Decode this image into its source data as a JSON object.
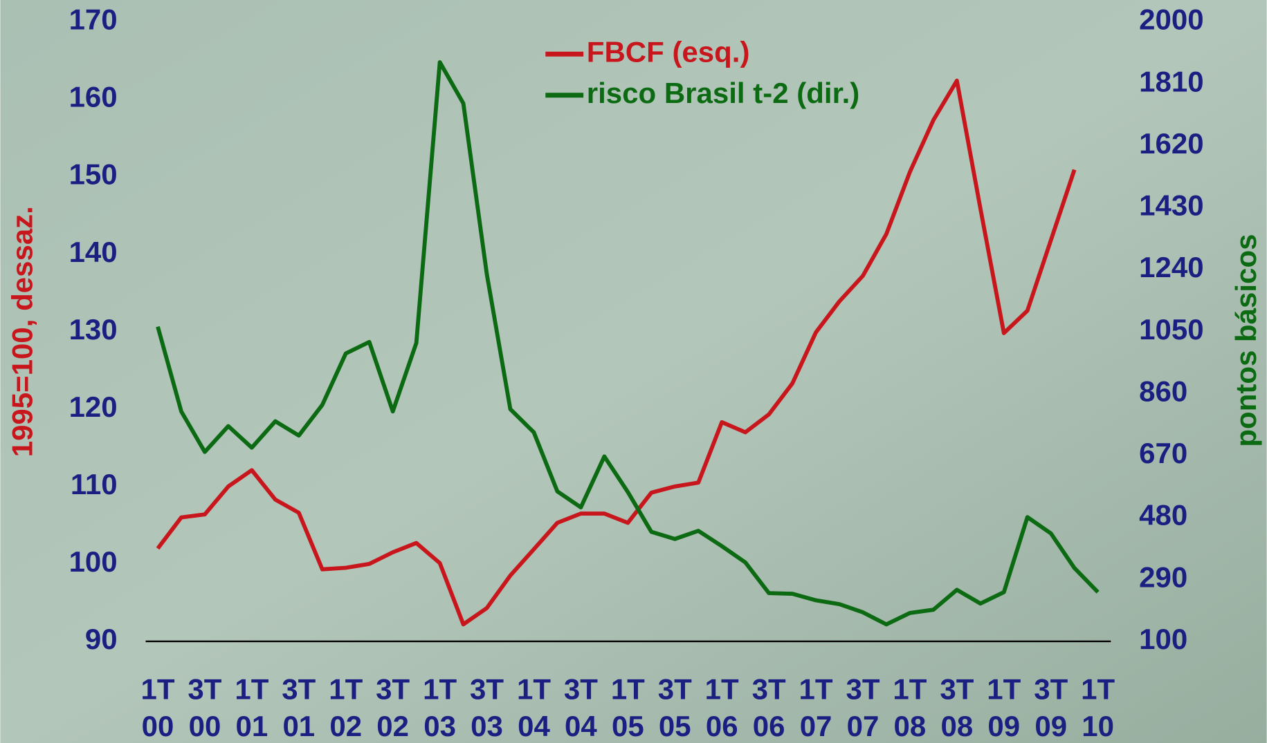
{
  "chart_data": {
    "type": "line",
    "legend": "top-center",
    "ylabel": "1995=100, dessaz.",
    "y2label": "pontos básicos",
    "categories": [
      "1T 00",
      null,
      "3T 00",
      null,
      "1T 01",
      null,
      "3T 01",
      null,
      "1T 02",
      null,
      "3T 02",
      null,
      "1T 03",
      null,
      "3T 03",
      null,
      "1T 04",
      null,
      "3T 04",
      null,
      "1T 05",
      null,
      "3T 05",
      null,
      "1T 06",
      null,
      "3T 06",
      null,
      "1T 07",
      null,
      "3T 07",
      null,
      "1T 08",
      null,
      "3T 08",
      null,
      "1T 09",
      null,
      "3T 09",
      null,
      "1T 10"
    ],
    "ylim": [
      90,
      170
    ],
    "yticks": [
      90,
      100,
      110,
      120,
      130,
      140,
      150,
      160,
      170
    ],
    "y2lim": [
      100,
      2000
    ],
    "y2ticks": [
      100,
      290,
      480,
      670,
      860,
      1050,
      1240,
      1430,
      1620,
      1810,
      2000
    ],
    "series": [
      {
        "name": "FBCF (esq.)",
        "color": "#c8161d",
        "values": [
          102.0,
          106.0,
          106.4,
          110.0,
          112.1,
          108.3,
          106.6,
          99.3,
          99.5,
          100.0,
          101.5,
          102.7,
          100.1,
          92.2,
          94.3,
          98.5,
          101.9,
          105.3,
          106.5,
          106.5,
          105.3,
          109.2,
          110.0,
          110.5,
          118.3,
          117.0,
          119.3,
          123.3,
          129.9,
          133.9,
          137.2,
          142.6,
          150.6,
          157.3,
          162.4,
          145.9,
          129.8,
          132.7,
          141.8,
          150.9,
          null
        ]
      },
      {
        "name": "risco Brasil t-2 (dir.)",
        "color": "#0b6a12",
        "axis": "y2",
        "values": [
          1065,
          805,
          681,
          760,
          694,
          775,
          731,
          825,
          983,
          1018,
          805,
          1015,
          1876,
          1750,
          1226,
          812,
          741,
          560,
          511,
          667,
          558,
          436,
          414,
          439,
          392,
          342,
          248,
          246,
          226,
          214,
          189,
          152,
          187,
          197,
          258,
          216,
          251,
          481,
          431,
          325,
          251
        ]
      }
    ]
  }
}
